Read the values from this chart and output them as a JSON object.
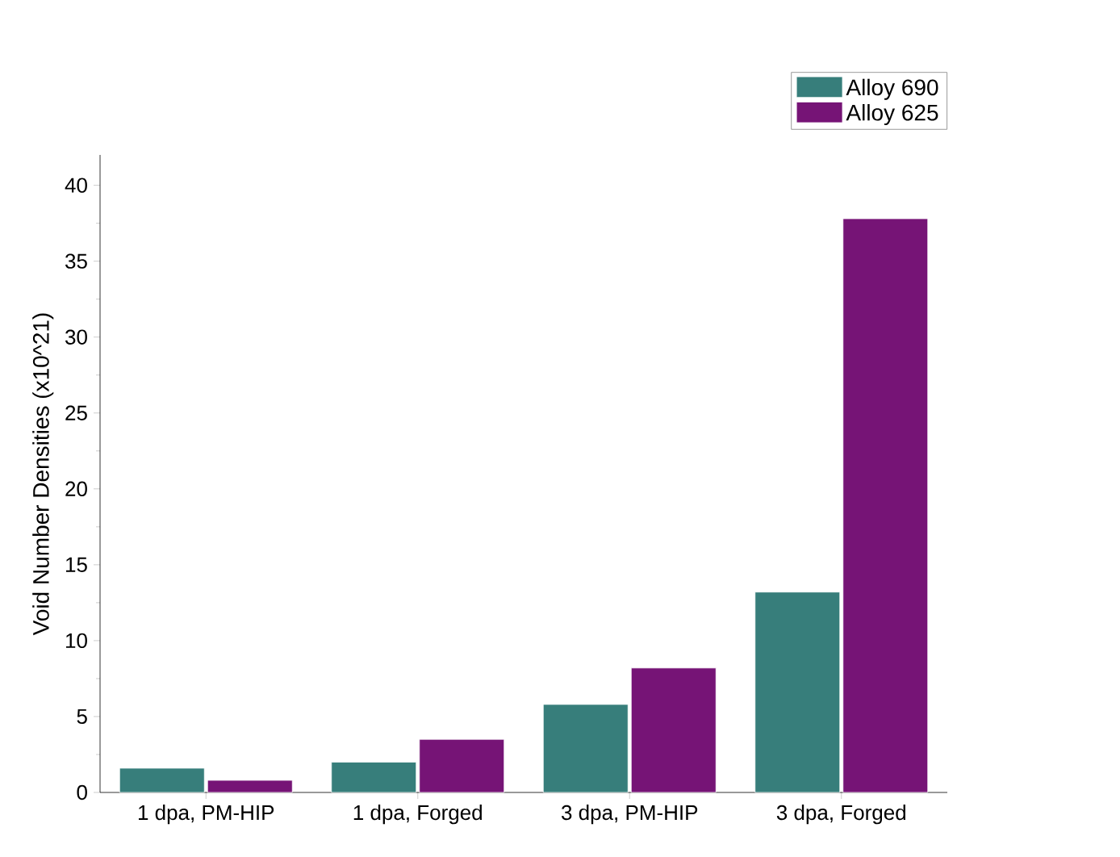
{
  "chart_data": {
    "type": "bar",
    "ylabel": "Void Number Densities (x10^21)",
    "categories": [
      "1 dpa, PM-HIP",
      "1 dpa, Forged",
      "3 dpa, PM-HIP",
      "3 dpa, Forged"
    ],
    "series": [
      {
        "name": "Alloy 690",
        "color": "#377e7b",
        "values": [
          1.6,
          2.0,
          5.8,
          13.2
        ]
      },
      {
        "name": "Alloy 625",
        "color": "#761476",
        "values": [
          0.8,
          3.5,
          8.2,
          37.8
        ]
      }
    ],
    "ylim": [
      0,
      42
    ],
    "yticks": [
      0,
      5,
      10,
      15,
      20,
      25,
      30,
      35,
      40
    ],
    "grid": false,
    "legend": "top right"
  }
}
